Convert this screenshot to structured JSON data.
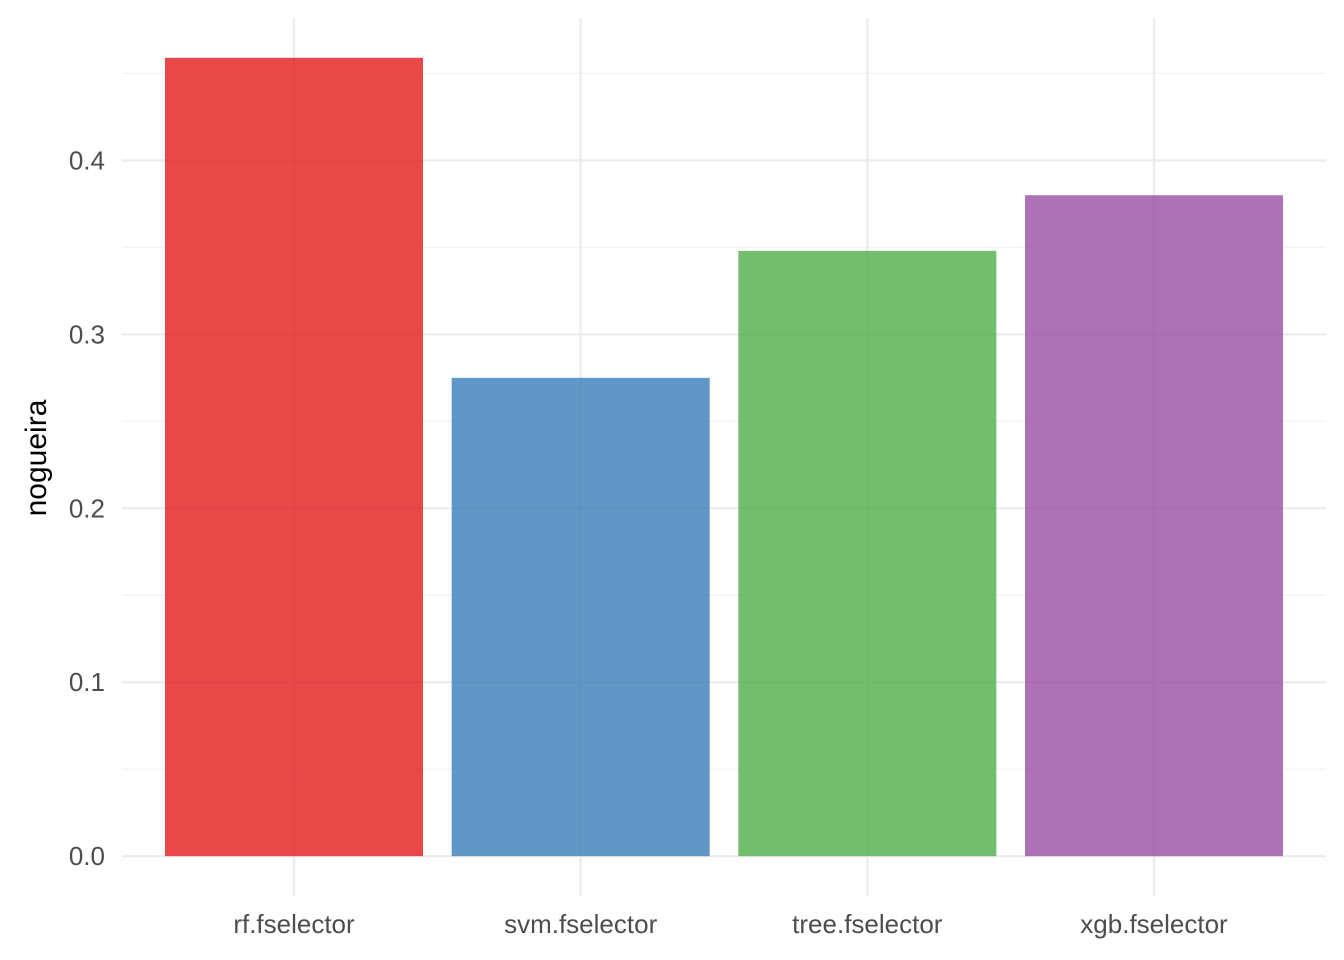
{
  "chart_data": {
    "type": "bar",
    "categories": [
      "rf.fselector",
      "svm.fselector",
      "tree.fselector",
      "xgb.fselector"
    ],
    "values": [
      0.459,
      0.275,
      0.348,
      0.38
    ],
    "colors": [
      "#E41A1C",
      "#377EB8",
      "#4DAF4A",
      "#984EA3"
    ],
    "bar_opacity": 0.8,
    "title": "",
    "xlabel": "",
    "ylabel": "nogueira",
    "ylim": [
      -0.0229,
      0.4819
    ],
    "yticks": [
      0.0,
      0.1,
      0.2,
      0.3,
      0.4
    ],
    "ytick_labels": [
      "0.0",
      "0.1",
      "0.2",
      "0.3",
      "0.4"
    ],
    "grid": true,
    "legend": "none"
  }
}
